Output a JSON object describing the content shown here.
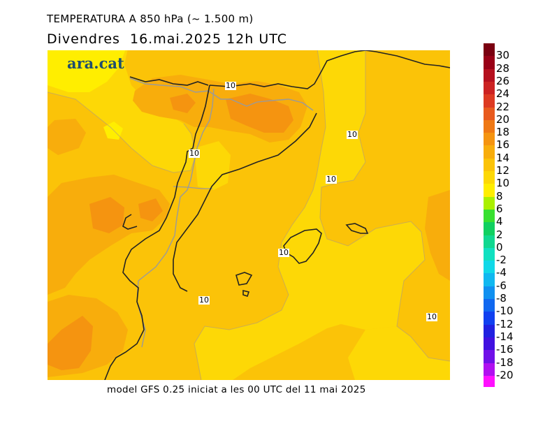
{
  "title_line1": "TEMPERATURA A 850 hPa (~ 1.500 m)",
  "title_line2": "Divendres  16.mai.2025 12h UTC",
  "footer": "model GFS 0.25 iniciat a les 00 UTC del 11 mai 2025",
  "logo": "ara.cat",
  "contour_value": "10",
  "legend": [
    {
      "label": "30",
      "color": "#7a0010"
    },
    {
      "label": "28",
      "color": "#990016"
    },
    {
      "label": "26",
      "color": "#b5101e"
    },
    {
      "label": "24",
      "color": "#cc2222"
    },
    {
      "label": "22",
      "color": "#dd3a22"
    },
    {
      "label": "20",
      "color": "#e85a1e"
    },
    {
      "label": "18",
      "color": "#ef7814"
    },
    {
      "label": "16",
      "color": "#f59410"
    },
    {
      "label": "14",
      "color": "#f8ad0c"
    },
    {
      "label": "12",
      "color": "#fbc308"
    },
    {
      "label": "10",
      "color": "#fdd806"
    },
    {
      "label": "8",
      "color": "#ffee00"
    },
    {
      "label": "6",
      "color": "#aaf000"
    },
    {
      "label": "4",
      "color": "#38e030"
    },
    {
      "label": "2",
      "color": "#10d060"
    },
    {
      "label": "0",
      "color": "#10d890"
    },
    {
      "label": "-2",
      "color": "#10e0c0"
    },
    {
      "label": "-4",
      "color": "#10d8e8"
    },
    {
      "label": "-6",
      "color": "#10b8f0"
    },
    {
      "label": "-8",
      "color": "#1090f0"
    },
    {
      "label": "-10",
      "color": "#1068f0"
    },
    {
      "label": "-12",
      "color": "#1040f0"
    },
    {
      "label": "-14",
      "color": "#2020e0"
    },
    {
      "label": "-16",
      "color": "#4010e0"
    },
    {
      "label": "-18",
      "color": "#7010e8"
    },
    {
      "label": "-20",
      "color": "#b010f0"
    }
  ],
  "legend_bottom_color": "#ff10ff",
  "colors": {
    "t8": "#ffee00",
    "t10": "#fdd806",
    "t12": "#fbc308",
    "t14": "#f8ad0c",
    "t16": "#f59410",
    "coastline": "#222222",
    "border": "#999999"
  }
}
